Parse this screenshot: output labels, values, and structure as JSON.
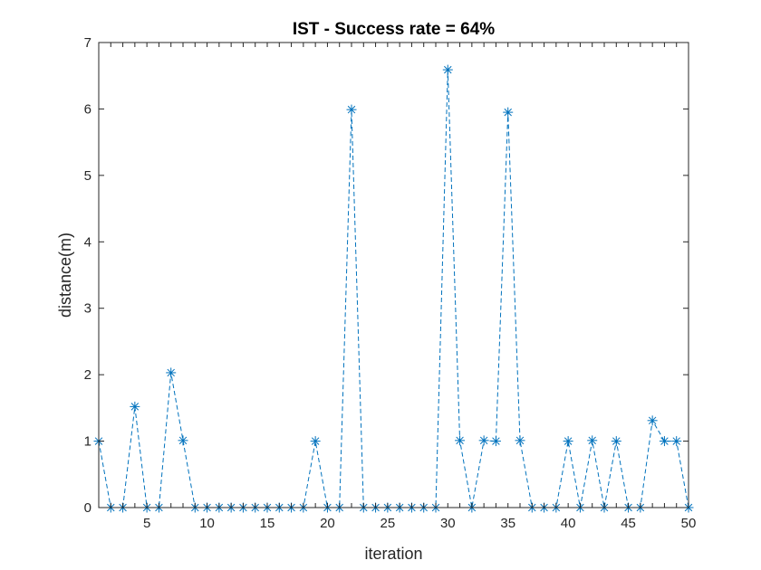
{
  "chart_data": {
    "type": "line",
    "title": "IST - Success rate = 64%",
    "xlabel": "iteration",
    "ylabel": "distance(m)",
    "xlim": [
      1,
      50
    ],
    "ylim": [
      0,
      7
    ],
    "xticks": [
      5,
      10,
      15,
      20,
      25,
      30,
      35,
      40,
      45,
      50
    ],
    "yticks": [
      0,
      1,
      2,
      3,
      4,
      5,
      6,
      7
    ],
    "grid": false,
    "line_style": "dashed",
    "marker": "asterisk",
    "color": "#0072bd",
    "x": [
      1,
      2,
      3,
      4,
      5,
      6,
      7,
      8,
      9,
      10,
      11,
      12,
      13,
      14,
      15,
      16,
      17,
      18,
      19,
      20,
      21,
      22,
      23,
      24,
      25,
      26,
      27,
      28,
      29,
      30,
      31,
      32,
      33,
      34,
      35,
      36,
      37,
      38,
      39,
      40,
      41,
      42,
      43,
      44,
      45,
      46,
      47,
      48,
      49,
      50
    ],
    "y": [
      1,
      0,
      0,
      1.52,
      0,
      0,
      2.03,
      1.01,
      0,
      0,
      0,
      0,
      0,
      0,
      0,
      0,
      0,
      0,
      1,
      0,
      0,
      5.99,
      0,
      0,
      0,
      0,
      0,
      0,
      0,
      6.59,
      1.01,
      0,
      1.01,
      1,
      5.95,
      1.01,
      0,
      0,
      0,
      1,
      0,
      1.01,
      0,
      1,
      0,
      0,
      1.31,
      1,
      1,
      0
    ]
  }
}
